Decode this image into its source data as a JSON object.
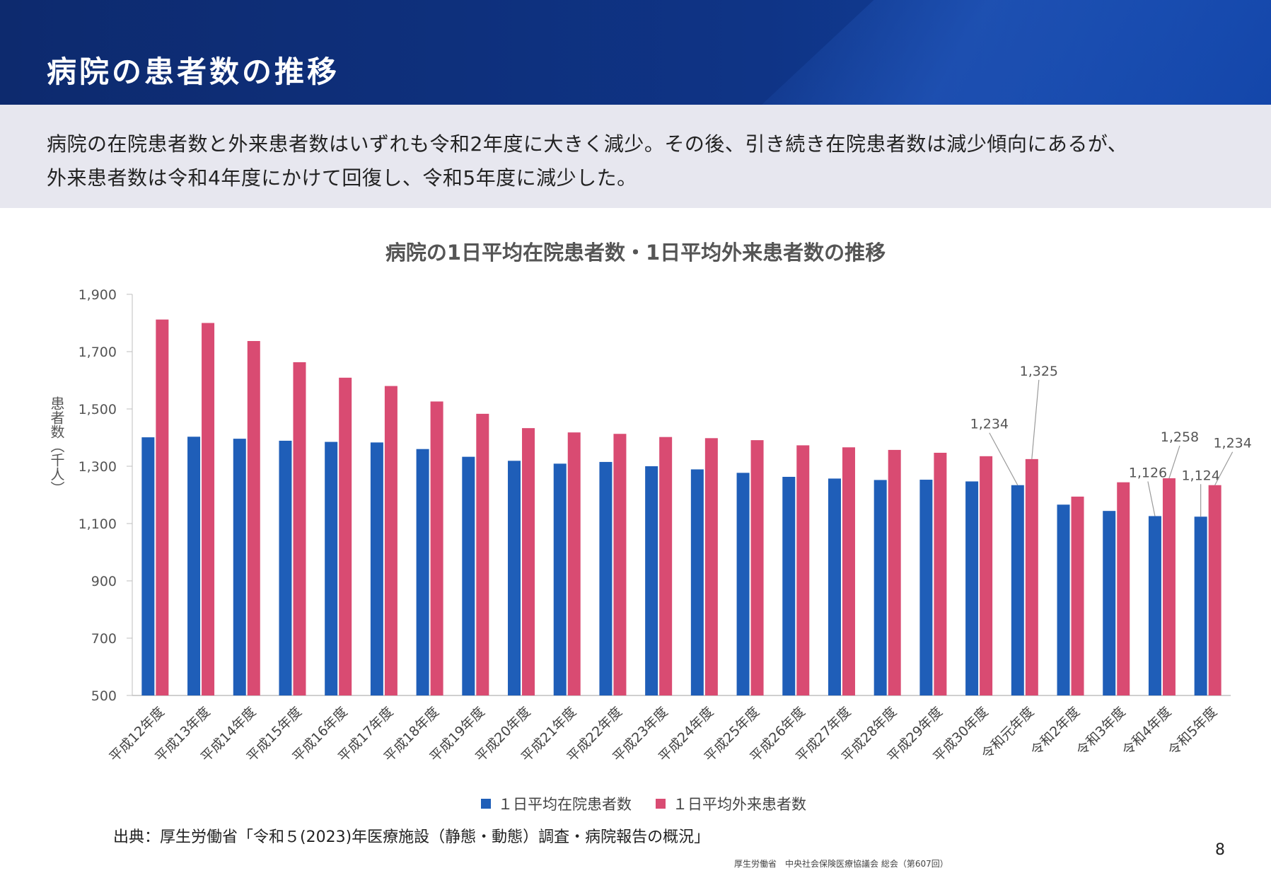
{
  "slide": {
    "title": "病院の患者数の推移",
    "summary_line1": "病院の在院患者数と外来患者数はいずれも令和2年度に大きく減少。その後、引き続き在院患者数は減少傾向にあるが、",
    "summary_line2": "外来患者数は令和4年度にかけて回復し、令和5年度に減少した。",
    "source": "出典：厚生労働省「令和５(2023)年医療施設（静態・動態）調査・病院報告の概況」",
    "footer_note": "厚生労働省　中央社会保険医療協議会 総会（第607回）",
    "page_number": "8"
  },
  "colors": {
    "inpatient": "#1f5eb8",
    "outpatient": "#d94b72",
    "header_bg": "#0f3486",
    "summary_bg": "#e7e7ef"
  },
  "chart_data": {
    "type": "bar",
    "title": "病院の1日平均在院患者数・1日平均外来患者数の推移",
    "xlabel": "",
    "ylabel": "患者数（千人）",
    "ylim": [
      500,
      1900
    ],
    "yticks": [
      "1,900",
      "1,700",
      "1,500",
      "1,300",
      "1,100",
      "900",
      "700",
      "500"
    ],
    "ytick_values": [
      1900,
      1700,
      1500,
      1300,
      1100,
      900,
      700,
      500
    ],
    "grid": false,
    "legend_position": "bottom",
    "categories": [
      "平成12年度",
      "平成13年度",
      "平成14年度",
      "平成15年度",
      "平成16年度",
      "平成17年度",
      "平成18年度",
      "平成19年度",
      "平成20年度",
      "平成21年度",
      "平成22年度",
      "平成23年度",
      "平成24年度",
      "平成25年度",
      "平成26年度",
      "平成27年度",
      "平成28年度",
      "平成29年度",
      "平成30年度",
      "令和元年度",
      "令和2年度",
      "令和3年度",
      "令和4年度",
      "令和5年度"
    ],
    "series": [
      {
        "name": "１日平均在院患者数",
        "values": [
          1401,
          1403,
          1396,
          1389,
          1385,
          1383,
          1360,
          1333,
          1319,
          1309,
          1315,
          1300,
          1289,
          1277,
          1263,
          1257,
          1252,
          1253,
          1247,
          1234,
          1166,
          1144,
          1126,
          1124
        ]
      },
      {
        "name": "１日平均外来患者数",
        "values": [
          1812,
          1800,
          1737,
          1663,
          1609,
          1580,
          1526,
          1483,
          1433,
          1418,
          1413,
          1402,
          1398,
          1391,
          1373,
          1366,
          1357,
          1347,
          1335,
          1325,
          1194,
          1244,
          1258,
          1234
        ]
      }
    ],
    "annotations": [
      {
        "label": "1,234",
        "series": 0,
        "index": 19
      },
      {
        "label": "1,325",
        "series": 1,
        "index": 19
      },
      {
        "label": "1,126",
        "series": 0,
        "index": 22
      },
      {
        "label": "1,258",
        "series": 1,
        "index": 22
      },
      {
        "label": "1,124",
        "series": 0,
        "index": 23
      },
      {
        "label": "1,234",
        "series": 1,
        "index": 23
      }
    ]
  }
}
